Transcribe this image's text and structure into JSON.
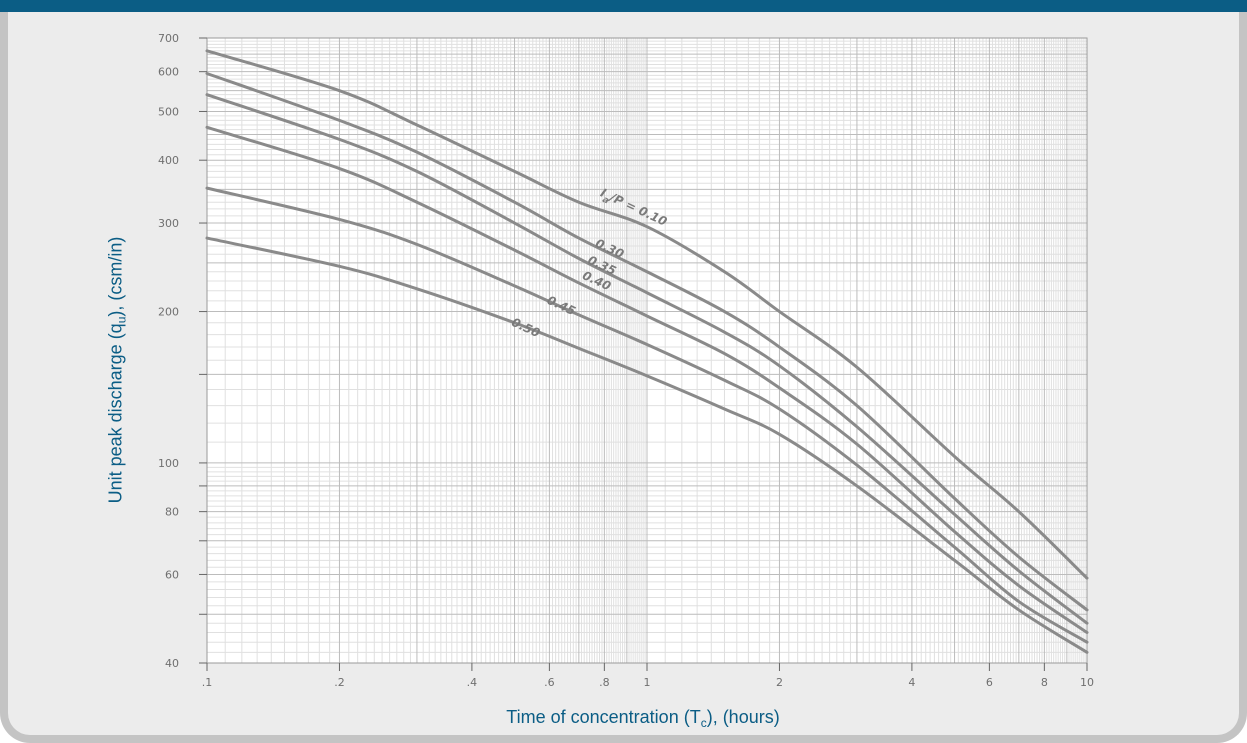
{
  "colors": {
    "header_bar": "#0b5d85",
    "axis_label": "#0b5d85",
    "panel_background": "#ececec",
    "panel_border": "#c4c4c4",
    "curve": "#8a8a8a",
    "grid": "#d2d2d2"
  },
  "axis_labels": {
    "y": {
      "main": "Unit peak discharge (q",
      "sub": "u",
      "tail": "), (csm/in)"
    },
    "x": {
      "main": "Time of concentration (T",
      "sub": "c",
      "tail": "), (hours)"
    }
  },
  "chart_data": {
    "type": "line",
    "title": "",
    "x_scale": "log",
    "y_scale": "log",
    "xlim": [
      0.1,
      10
    ],
    "ylim": [
      40,
      700
    ],
    "grid": true,
    "legend": "none",
    "x_ticks": [
      {
        "value": 0.1,
        "label": ".1"
      },
      {
        "value": 0.2,
        "label": ".2"
      },
      {
        "value": 0.4,
        "label": ".4"
      },
      {
        "value": 0.6,
        "label": ".6"
      },
      {
        "value": 0.8,
        "label": ".8"
      },
      {
        "value": 1,
        "label": "1"
      },
      {
        "value": 2,
        "label": "2"
      },
      {
        "value": 4,
        "label": "4"
      },
      {
        "value": 6,
        "label": "6"
      },
      {
        "value": 8,
        "label": "8"
      },
      {
        "value": 10,
        "label": "10"
      }
    ],
    "y_ticks": [
      {
        "value": 40,
        "label": "40"
      },
      {
        "value": 60,
        "label": "60"
      },
      {
        "value": 80,
        "label": "80"
      },
      {
        "value": 100,
        "label": "100"
      },
      {
        "value": 200,
        "label": "200"
      },
      {
        "value": 300,
        "label": "300"
      },
      {
        "value": 400,
        "label": "400"
      },
      {
        "value": 500,
        "label": "500"
      },
      {
        "value": 600,
        "label": "600"
      },
      {
        "value": 700,
        "label": "700"
      }
    ],
    "y_minor_ticks": [
      50,
      70,
      90,
      150
    ],
    "x": [
      0.1,
      0.2,
      0.3,
      0.5,
      0.7,
      1,
      1.5,
      2,
      3,
      5,
      7,
      10
    ],
    "series": [
      {
        "label": "0.10",
        "values": [
          660,
          550,
          470,
          380,
          330,
          295,
          240,
          200,
          155,
          103,
          80,
          59
        ]
      },
      {
        "label": "0.30",
        "values": [
          595,
          480,
          415,
          330,
          280,
          240,
          200,
          170,
          130,
          85,
          65,
          51
        ]
      },
      {
        "label": "0.35",
        "values": [
          540,
          440,
          380,
          300,
          255,
          218,
          182,
          156,
          118,
          79,
          61,
          48
        ]
      },
      {
        "label": "0.40",
        "values": [
          465,
          385,
          330,
          265,
          228,
          196,
          165,
          141,
          109,
          73,
          57,
          46
        ]
      },
      {
        "label": "0.45",
        "values": [
          352,
          305,
          272,
          225,
          197,
          172,
          146,
          128,
          99,
          68,
          53,
          44
        ]
      },
      {
        "label": "0.50",
        "values": [
          280,
          246,
          222,
          190,
          169,
          149,
          128,
          114,
          90,
          64,
          51,
          42
        ]
      }
    ],
    "curve_labels": [
      {
        "pre": "I",
        "sub": "a",
        "post": "/P = 0.10",
        "x": 0.78,
        "y": 340,
        "angle": 25
      },
      {
        "pre": "0.30",
        "sub": "",
        "post": "",
        "x": 0.76,
        "y": 270,
        "angle": 25
      },
      {
        "pre": "0.35",
        "sub": "",
        "post": "",
        "x": 0.73,
        "y": 250,
        "angle": 25
      },
      {
        "pre": "0.40",
        "sub": "",
        "post": "",
        "x": 0.71,
        "y": 233,
        "angle": 25
      },
      {
        "pre": "0.45",
        "sub": "",
        "post": "",
        "x": 0.59,
        "y": 208,
        "angle": 25
      },
      {
        "pre": "0.50",
        "sub": "",
        "post": "",
        "x": 0.49,
        "y": 188,
        "angle": 25
      }
    ]
  }
}
